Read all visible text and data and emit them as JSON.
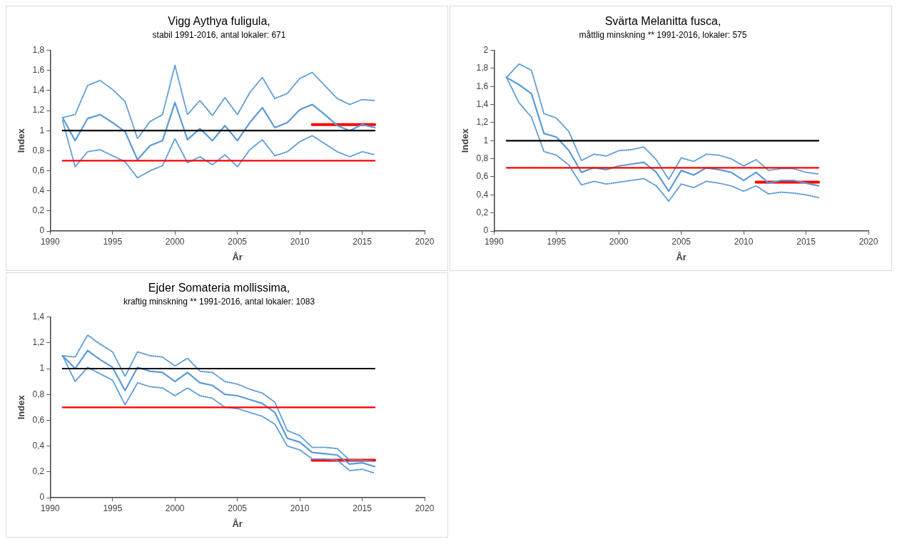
{
  "chart_data": [
    {
      "type": "line",
      "title": "Vigg Aythya fuligula,",
      "subtitle": "stabil 1991-2016, antal lokaler: 671",
      "xlabel": "År",
      "ylabel": "Index",
      "x": [
        1991,
        1992,
        1993,
        1994,
        1995,
        1996,
        1997,
        1998,
        1999,
        2000,
        2001,
        2002,
        2003,
        2004,
        2005,
        2006,
        2007,
        2008,
        2009,
        2010,
        2011,
        2012,
        2013,
        2014,
        2015,
        2016
      ],
      "series": [
        {
          "color": "#000000",
          "x": [
            1991,
            2016
          ],
          "values": [
            1,
            1
          ]
        },
        {
          "color": "#ff0000",
          "x": [
            1991,
            2016
          ],
          "values": [
            0.7,
            0.7
          ]
        },
        {
          "color": "#5b9bd5",
          "line_style": "dotted",
          "values": [
            1.13,
            1.16,
            1.45,
            1.5,
            1.41,
            1.29,
            0.92,
            1.09,
            1.16,
            1.65,
            1.16,
            1.3,
            1.15,
            1.33,
            1.16,
            1.38,
            1.53,
            1.32,
            1.37,
            1.52,
            1.58,
            1.45,
            1.32,
            1.26,
            1.31,
            1.3
          ]
        },
        {
          "color": "#5b9bd5",
          "line_style": "dotted",
          "values": [
            1.1,
            0.64,
            0.79,
            0.81,
            0.75,
            0.69,
            0.53,
            0.6,
            0.65,
            0.92,
            0.68,
            0.74,
            0.66,
            0.76,
            0.64,
            0.81,
            0.91,
            0.75,
            0.79,
            0.89,
            0.95,
            0.87,
            0.79,
            0.74,
            0.79,
            0.76
          ]
        },
        {
          "color": "#5b9bd5",
          "values": [
            1.13,
            0.9,
            1.12,
            1.16,
            1.08,
            0.99,
            0.71,
            0.85,
            0.9,
            1.28,
            0.91,
            1.02,
            0.9,
            1.05,
            0.9,
            1.08,
            1.23,
            1.03,
            1.08,
            1.21,
            1.26,
            1.16,
            1.05,
            1.0,
            1.06,
            1.03
          ]
        },
        {
          "color": "#ff0000",
          "x": [
            2011,
            2016
          ],
          "values": [
            1.06,
            1.06
          ]
        }
      ],
      "xlim": [
        1990,
        2020
      ],
      "xticks": [
        1990,
        1995,
        2000,
        2005,
        2010,
        2015,
        2020
      ],
      "ylim": [
        0,
        1.8
      ],
      "yticks": [
        0,
        {
          "value": 0.2,
          "label": "0,2"
        },
        {
          "value": 0.4,
          "label": "0,4"
        },
        {
          "value": 0.6,
          "label": "0,6"
        },
        {
          "value": 0.8,
          "label": "0,8"
        },
        1,
        {
          "value": 1.2,
          "label": "1,2"
        },
        {
          "value": 1.4,
          "label": "1,4"
        },
        {
          "value": 1.6,
          "label": "1,6"
        },
        {
          "value": 1.8,
          "label": "1,8"
        }
      ],
      "marker": "none",
      "grid": false,
      "legend": false
    },
    {
      "type": "line",
      "title": "Svärta Melanitta fusca,",
      "subtitle": "måttlig minskning ** 1991-2016, lokaler: 575",
      "xlabel": "År",
      "ylabel": "Index",
      "x": [
        1991,
        1992,
        1993,
        1994,
        1995,
        1996,
        1997,
        1998,
        1999,
        2000,
        2001,
        2002,
        2003,
        2004,
        2005,
        2006,
        2007,
        2008,
        2009,
        2010,
        2011,
        2012,
        2013,
        2014,
        2015,
        2016
      ],
      "series": [
        {
          "color": "#000000",
          "x": [
            1991,
            2016
          ],
          "values": [
            1,
            1
          ]
        },
        {
          "color": "#ff0000",
          "x": [
            1991,
            2016
          ],
          "values": [
            0.7,
            0.7
          ]
        },
        {
          "color": "#5b9bd5",
          "line_style": "dotted",
          "values": [
            1.7,
            1.85,
            1.78,
            1.3,
            1.25,
            1.1,
            0.78,
            0.85,
            0.83,
            0.89,
            0.9,
            0.93,
            0.79,
            0.57,
            0.81,
            0.77,
            0.85,
            0.84,
            0.8,
            0.72,
            0.79,
            0.67,
            0.69,
            0.69,
            0.65,
            0.63
          ]
        },
        {
          "color": "#5b9bd5",
          "line_style": "dotted",
          "values": [
            1.7,
            1.42,
            1.26,
            0.88,
            0.84,
            0.73,
            0.51,
            0.55,
            0.52,
            0.54,
            0.56,
            0.58,
            0.5,
            0.33,
            0.52,
            0.48,
            0.55,
            0.53,
            0.5,
            0.44,
            0.5,
            0.41,
            0.43,
            0.42,
            0.4,
            0.37
          ]
        },
        {
          "color": "#5b9bd5",
          "values": [
            1.7,
            1.62,
            1.52,
            1.08,
            1.04,
            0.89,
            0.65,
            0.7,
            0.68,
            0.72,
            0.74,
            0.76,
            0.65,
            0.44,
            0.67,
            0.62,
            0.7,
            0.68,
            0.65,
            0.56,
            0.65,
            0.53,
            0.56,
            0.56,
            0.53,
            0.5
          ]
        },
        {
          "color": "#ff0000",
          "x": [
            2011,
            2016
          ],
          "values": [
            0.54,
            0.54
          ]
        }
      ],
      "xlim": [
        1990,
        2020
      ],
      "xticks": [
        1990,
        1995,
        2000,
        2005,
        2010,
        2015,
        2020
      ],
      "ylim": [
        0,
        2
      ],
      "yticks": [
        0,
        {
          "value": 0.2,
          "label": "0,2"
        },
        {
          "value": 0.4,
          "label": "0,4"
        },
        {
          "value": 0.6,
          "label": "0,6"
        },
        {
          "value": 0.8,
          "label": "0,8"
        },
        1,
        {
          "value": 1.2,
          "label": "1,2"
        },
        {
          "value": 1.4,
          "label": "1,4"
        },
        {
          "value": 1.6,
          "label": "1,6"
        },
        {
          "value": 1.8,
          "label": "1,8"
        },
        2
      ],
      "marker": "none",
      "grid": false,
      "legend": false
    },
    {
      "type": "line",
      "title": "Ejder Somateria mollissima,",
      "subtitle": "kraftig minskning ** 1991-2016, antal lokaler: 1083",
      "xlabel": "År",
      "ylabel": "Index",
      "x": [
        1991,
        1992,
        1993,
        1994,
        1995,
        1996,
        1997,
        1998,
        1999,
        2000,
        2001,
        2002,
        2003,
        2004,
        2005,
        2006,
        2007,
        2008,
        2009,
        2010,
        2011,
        2012,
        2013,
        2014,
        2015,
        2016
      ],
      "series": [
        {
          "color": "#000000",
          "x": [
            1991,
            2016
          ],
          "values": [
            1,
            1
          ]
        },
        {
          "color": "#ff0000",
          "x": [
            1991,
            2016
          ],
          "values": [
            0.7,
            0.7
          ]
        },
        {
          "color": "#5b9bd5",
          "line_style": "dotted",
          "values": [
            1.1,
            1.09,
            1.26,
            1.19,
            1.13,
            0.94,
            1.13,
            1.1,
            1.09,
            1.02,
            1.08,
            0.98,
            0.97,
            0.9,
            0.88,
            0.84,
            0.81,
            0.74,
            0.52,
            0.48,
            0.39,
            0.39,
            0.38,
            0.29,
            0.29,
            0.28
          ]
        },
        {
          "color": "#5b9bd5",
          "line_style": "dotted",
          "values": [
            1.1,
            0.9,
            1.01,
            0.96,
            0.91,
            0.72,
            0.89,
            0.86,
            0.85,
            0.79,
            0.85,
            0.79,
            0.77,
            0.7,
            0.69,
            0.66,
            0.63,
            0.57,
            0.4,
            0.37,
            0.3,
            0.3,
            0.29,
            0.21,
            0.22,
            0.19
          ]
        },
        {
          "color": "#5b9bd5",
          "values": [
            1.1,
            1.0,
            1.14,
            1.07,
            1.01,
            0.83,
            1.01,
            0.98,
            0.97,
            0.9,
            0.97,
            0.89,
            0.87,
            0.8,
            0.79,
            0.76,
            0.73,
            0.66,
            0.46,
            0.43,
            0.35,
            0.34,
            0.33,
            0.26,
            0.27,
            0.24
          ]
        },
        {
          "color": "#ff0000",
          "x": [
            2011,
            2016
          ],
          "values": [
            0.29,
            0.29
          ]
        }
      ],
      "xlim": [
        1990,
        2020
      ],
      "xticks": [
        1990,
        1995,
        2000,
        2005,
        2010,
        2015,
        2020
      ],
      "ylim": [
        0,
        1.4
      ],
      "yticks": [
        0,
        {
          "value": 0.2,
          "label": "0,2"
        },
        {
          "value": 0.4,
          "label": "0,4"
        },
        {
          "value": 0.6,
          "label": "0,6"
        },
        {
          "value": 0.8,
          "label": "0,8"
        },
        1,
        {
          "value": 1.2,
          "label": "1,2"
        },
        {
          "value": 1.4,
          "label": "1,4"
        }
      ],
      "marker": "none",
      "grid": false,
      "legend": false
    }
  ]
}
